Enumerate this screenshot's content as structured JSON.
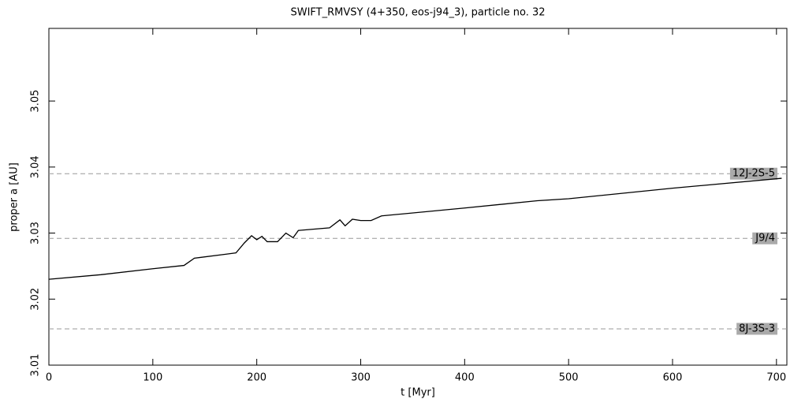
{
  "chart_data": {
    "type": "line",
    "title": "SWIFT_RMVSY (4+350, eos-j94_3), particle no. 32",
    "x_label": "t [Myr]",
    "y_label": "proper a [AU]",
    "xlim": [
      0,
      710
    ],
    "xticks": [
      0,
      100,
      200,
      300,
      400,
      500,
      600,
      700
    ],
    "ylim": [
      3.01,
      3.061
    ],
    "yticks": [
      3.01,
      3.02,
      3.03,
      3.04,
      3.05
    ],
    "grid": false,
    "series": [
      {
        "color": "#000000",
        "x": [
          0,
          50,
          100,
          130,
          140,
          170,
          180,
          188,
          195,
          200,
          205,
          210,
          220,
          228,
          235,
          240,
          270,
          280,
          285,
          292,
          300,
          310,
          320,
          400,
          470,
          500,
          600,
          705
        ],
        "values": [
          3.023,
          3.0237,
          3.0246,
          3.0251,
          3.0262,
          3.0268,
          3.027,
          3.0285,
          3.0296,
          3.029,
          3.0295,
          3.0287,
          3.0287,
          3.03,
          3.0293,
          3.0304,
          3.0308,
          3.032,
          3.0311,
          3.0321,
          3.0319,
          3.0319,
          3.0326,
          3.0338,
          3.0349,
          3.0352,
          3.0368,
          3.0383
        ]
      }
    ],
    "resonances": [
      {
        "label": "12J-2S-5",
        "value": 3.039
      },
      {
        "label": "J9/4",
        "value": 3.0292
      },
      {
        "label": "8J-3S-3",
        "value": 3.0155
      }
    ]
  }
}
